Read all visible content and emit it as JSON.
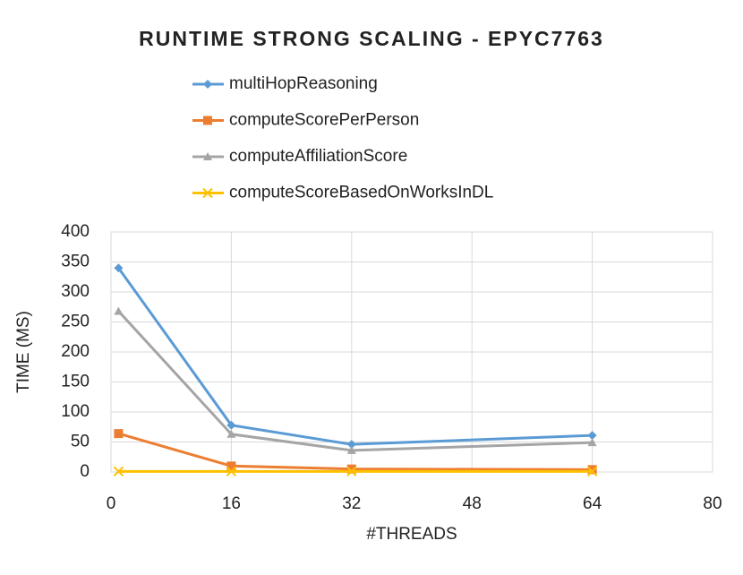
{
  "chart_data": {
    "type": "line",
    "title": "RUNTIME STRONG SCALING - EPYC7763",
    "x_label": "#THREADS",
    "y_label": "TIME (MS)",
    "x": [
      1,
      16,
      32,
      64
    ],
    "series": [
      {
        "name": "multiHopReasoning",
        "color": "#5b9bd5",
        "marker": "diamond",
        "values": [
          340,
          78,
          46,
          61
        ]
      },
      {
        "name": "computeScorePerPerson",
        "color": "#ed7d31",
        "marker": "square",
        "values": [
          64,
          10,
          5,
          4
        ]
      },
      {
        "name": "computeAffiliationScore",
        "color": "#a5a5a5",
        "marker": "triangle",
        "values": [
          268,
          63,
          36,
          49
        ]
      },
      {
        "name": "computeScoreBasedOnWorksInDL",
        "color": "#ffc000",
        "marker": "x",
        "values": [
          1,
          1,
          1,
          1
        ]
      }
    ],
    "xlim": [
      0,
      80
    ],
    "xticks": [
      0,
      16,
      32,
      48,
      64,
      80
    ],
    "ylim": [
      0,
      400
    ],
    "yticks": [
      0,
      50,
      100,
      150,
      200,
      250,
      300,
      350,
      400
    ],
    "grid": true,
    "legend": "top"
  }
}
